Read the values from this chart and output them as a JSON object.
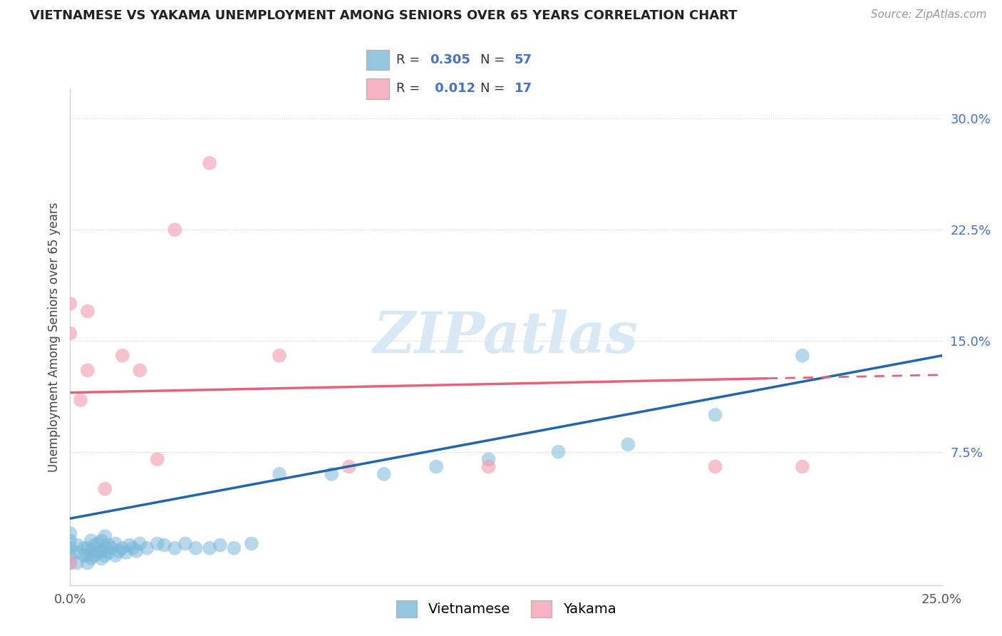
{
  "title": "VIETNAMESE VS YAKAMA UNEMPLOYMENT AMONG SENIORS OVER 65 YEARS CORRELATION CHART",
  "source": "Source: ZipAtlas.com",
  "ylabel": "Unemployment Among Seniors over 65 years",
  "xlim": [
    0.0,
    0.25
  ],
  "ylim": [
    -0.015,
    0.32
  ],
  "yticks": [
    0.0,
    0.075,
    0.15,
    0.225,
    0.3
  ],
  "ytick_labels": [
    "",
    "7.5%",
    "15.0%",
    "22.5%",
    "30.0%"
  ],
  "xtick_labels": [
    "0.0%",
    "",
    "",
    "",
    "",
    "25.0%"
  ],
  "legend_R_vietnamese": "0.305",
  "legend_N_vietnamese": "57",
  "legend_R_yakama": "0.012",
  "legend_N_yakama": "17",
  "vietnamese_color": "#7ab8d9",
  "yakama_color": "#f4a0b5",
  "trend_vietnamese_color": "#2166ac",
  "trend_yakama_color": "#e8607a",
  "watermark": "ZIPatlas",
  "viet_trend_x0": 0.0,
  "viet_trend_y0": 0.03,
  "viet_trend_x1": 0.25,
  "viet_trend_y1": 0.14,
  "yak_trend_x0": 0.0,
  "yak_trend_y0": 0.115,
  "yak_trend_x1": 0.25,
  "yak_trend_y1": 0.127,
  "vietnamese_x": [
    0.0,
    0.0,
    0.0,
    0.0,
    0.0,
    0.002,
    0.002,
    0.002,
    0.004,
    0.004,
    0.005,
    0.005,
    0.005,
    0.006,
    0.006,
    0.006,
    0.007,
    0.007,
    0.008,
    0.008,
    0.009,
    0.009,
    0.009,
    0.01,
    0.01,
    0.01,
    0.011,
    0.011,
    0.012,
    0.013,
    0.013,
    0.014,
    0.015,
    0.016,
    0.017,
    0.018,
    0.019,
    0.02,
    0.022,
    0.025,
    0.027,
    0.03,
    0.033,
    0.036,
    0.04,
    0.043,
    0.047,
    0.052,
    0.06,
    0.075,
    0.09,
    0.105,
    0.12,
    0.14,
    0.16,
    0.185,
    0.21
  ],
  "vietnamese_y": [
    0.0,
    0.005,
    0.01,
    0.015,
    0.02,
    0.0,
    0.007,
    0.012,
    0.005,
    0.01,
    0.0,
    0.005,
    0.01,
    0.003,
    0.008,
    0.015,
    0.005,
    0.012,
    0.007,
    0.013,
    0.003,
    0.008,
    0.015,
    0.005,
    0.01,
    0.018,
    0.007,
    0.012,
    0.01,
    0.005,
    0.013,
    0.008,
    0.01,
    0.007,
    0.012,
    0.01,
    0.008,
    0.013,
    0.01,
    0.013,
    0.012,
    0.01,
    0.013,
    0.01,
    0.01,
    0.012,
    0.01,
    0.013,
    0.06,
    0.06,
    0.06,
    0.065,
    0.07,
    0.075,
    0.08,
    0.1,
    0.14
  ],
  "yakama_x": [
    0.0,
    0.0,
    0.0,
    0.003,
    0.005,
    0.005,
    0.01,
    0.015,
    0.02,
    0.025,
    0.03,
    0.04,
    0.06,
    0.08,
    0.12,
    0.185,
    0.21
  ],
  "yakama_y": [
    0.0,
    0.155,
    0.175,
    0.11,
    0.13,
    0.17,
    0.05,
    0.14,
    0.13,
    0.07,
    0.225,
    0.27,
    0.14,
    0.065,
    0.065,
    0.065,
    0.065
  ]
}
